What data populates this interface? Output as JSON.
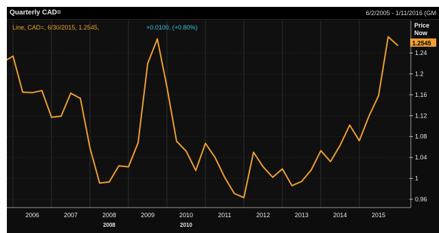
{
  "header": {
    "title": "Quarterly CAD=",
    "range": "6/2/2005 - 1/11/2016 (GM"
  },
  "legend": {
    "main": "Line, CAD=, 6/30/2015, 1.2545,",
    "change": "+0.0100, (+0.80%)"
  },
  "price_axis": {
    "title_line1": "Price",
    "title_line2": "Now",
    "current_label": "1.2545"
  },
  "colors": {
    "background": "#0d0d0d",
    "line": "#f0a030",
    "change_text": "#33c6e0",
    "axis_text": "#e6e6e6",
    "badge": "#f0a030"
  },
  "chart_data": {
    "type": "line",
    "title": "Quarterly CAD=",
    "series": [
      {
        "name": "CAD=",
        "points": [
          [
            2005.42,
            1.227
          ],
          [
            2005.58,
            1.234
          ],
          [
            2005.83,
            1.165
          ],
          [
            2006.08,
            1.164
          ],
          [
            2006.33,
            1.168
          ],
          [
            2006.58,
            1.117
          ],
          [
            2006.83,
            1.119
          ],
          [
            2007.08,
            1.163
          ],
          [
            2007.33,
            1.153
          ],
          [
            2007.58,
            1.058
          ],
          [
            2007.83,
            0.991
          ],
          [
            2008.08,
            0.993
          ],
          [
            2008.33,
            1.024
          ],
          [
            2008.58,
            1.022
          ],
          [
            2008.83,
            1.068
          ],
          [
            2009.08,
            1.22
          ],
          [
            2009.33,
            1.267
          ],
          [
            2009.58,
            1.175
          ],
          [
            2009.83,
            1.071
          ],
          [
            2010.08,
            1.052
          ],
          [
            2010.33,
            1.015
          ],
          [
            2010.58,
            1.067
          ],
          [
            2010.83,
            1.04
          ],
          [
            2011.08,
            1.002
          ],
          [
            2011.33,
            0.971
          ],
          [
            2011.58,
            0.963
          ],
          [
            2011.83,
            1.05
          ],
          [
            2012.08,
            1.022
          ],
          [
            2012.33,
            1.002
          ],
          [
            2012.58,
            1.018
          ],
          [
            2012.83,
            0.986
          ],
          [
            2013.08,
            0.994
          ],
          [
            2013.33,
            1.016
          ],
          [
            2013.58,
            1.053
          ],
          [
            2013.83,
            1.032
          ],
          [
            2014.08,
            1.063
          ],
          [
            2014.33,
            1.102
          ],
          [
            2014.58,
            1.072
          ],
          [
            2014.83,
            1.119
          ],
          [
            2015.08,
            1.158
          ],
          [
            2015.33,
            1.271
          ],
          [
            2015.58,
            1.2545
          ]
        ]
      }
    ],
    "y_ticks": [
      "1.24",
      "1.2",
      "1.16",
      "1.12",
      "1.08",
      "1.04",
      "1",
      "0.96"
    ],
    "x_ticks": [
      "2006",
      "2007",
      "2008",
      "2009",
      "2010",
      "2011",
      "2012",
      "2013",
      "2014",
      "2015"
    ],
    "x_sub_labels": [
      "2008",
      "2010"
    ],
    "ylim": [
      0.944,
      1.302
    ],
    "xlim": [
      2005.42,
      2015.92
    ],
    "y_axis_side": "right",
    "legend_position": "top-left"
  }
}
